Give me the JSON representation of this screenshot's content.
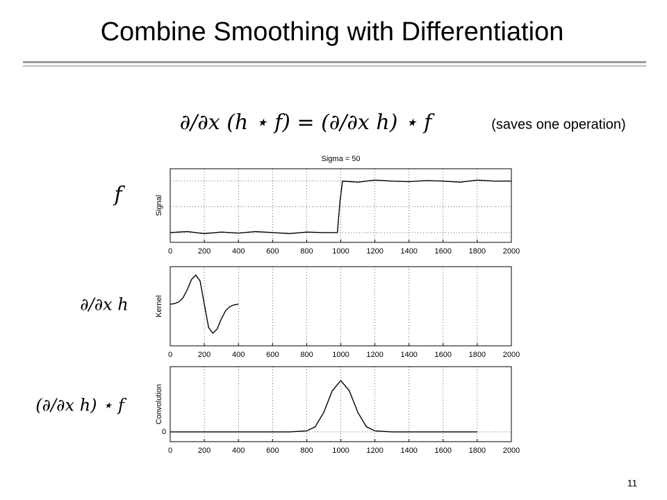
{
  "slide": {
    "title": "Combine Smoothing with Differentiation",
    "equation": "∂/∂x (h ⋆ f) = (∂/∂x h) ⋆ f",
    "note": "(saves one operation)",
    "row_labels": [
      "f",
      "∂/∂x h",
      "(∂/∂x h) ⋆ f"
    ],
    "page_number": "11"
  },
  "chart_data": [
    {
      "type": "line",
      "title": "Sigma = 50",
      "ylabel": "Signal",
      "color": "#000000",
      "grid": true,
      "x": [
        0,
        100,
        200,
        300,
        400,
        500,
        600,
        700,
        800,
        900,
        980,
        995,
        1010,
        1100,
        1200,
        1300,
        1400,
        1500,
        1600,
        1700,
        1800,
        1900,
        2000
      ],
      "values": [
        0,
        0.02,
        -0.02,
        0.01,
        -0.01,
        0.02,
        0,
        -0.02,
        0.01,
        0,
        0,
        0.6,
        1,
        0.98,
        1.02,
        1,
        0.99,
        1.01,
        1,
        0.98,
        1.02,
        1,
        1
      ],
      "xlim": [
        0,
        2000
      ],
      "xticks": [
        0,
        200,
        400,
        600,
        800,
        1000,
        1200,
        1400,
        1600,
        1800,
        2000
      ],
      "ylim": [
        -0.19,
        1.24
      ],
      "ygrid": [
        0,
        0.5,
        1
      ]
    },
    {
      "type": "line",
      "ylabel": "Kernel",
      "color": "#000000",
      "grid": true,
      "x": [
        0,
        25,
        50,
        75,
        100,
        125,
        150,
        175,
        200,
        225,
        250,
        275,
        300,
        325,
        350,
        375,
        400
      ],
      "values": [
        0,
        0.02,
        0.08,
        0.22,
        0.5,
        0.85,
        1,
        0.8,
        0,
        -0.8,
        -1,
        -0.85,
        -0.5,
        -0.22,
        -0.08,
        -0.02,
        0
      ],
      "xlim": [
        0,
        2000
      ],
      "xticks": [
        0,
        200,
        400,
        600,
        800,
        1000,
        1200,
        1400,
        1600,
        1800,
        2000
      ],
      "ylim": [
        -1.43,
        1.29
      ]
    },
    {
      "type": "line",
      "ylabel": "Convolution",
      "color": "#000000",
      "grid": true,
      "x": [
        0,
        200,
        400,
        600,
        700,
        800,
        850,
        900,
        950,
        1000,
        1050,
        1100,
        1150,
        1200,
        1300,
        1400,
        1600,
        1800
      ],
      "values": [
        0,
        0,
        0,
        0,
        0,
        0.02,
        0.1,
        0.38,
        0.8,
        1,
        0.8,
        0.38,
        0.1,
        0.02,
        0,
        0,
        0,
        0
      ],
      "xlim": [
        0,
        2000
      ],
      "xticks": [
        0,
        200,
        400,
        600,
        800,
        1000,
        1200,
        1400,
        1600,
        1800,
        2000
      ],
      "ylim": [
        -0.19,
        1.27
      ],
      "yticks": [
        0
      ]
    }
  ]
}
